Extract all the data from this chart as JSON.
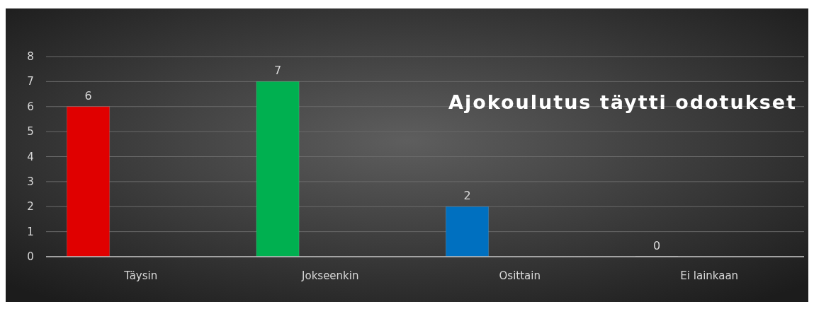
{
  "chart_data": {
    "type": "bar",
    "title": "Ajokoulutus täytti odotukset",
    "categories": [
      "Täysin",
      "Jokseenkin",
      "Osittain",
      "Ei lainkaan"
    ],
    "values": [
      6,
      7,
      2,
      0
    ],
    "colors": [
      "#e00000",
      "#00b050",
      "#0070c0",
      "#7f7f7f"
    ],
    "ylim": [
      0,
      8
    ],
    "yticks": [
      0,
      1,
      2,
      3,
      4,
      5,
      6,
      7,
      8
    ],
    "grid": "y",
    "data_labels": true
  }
}
